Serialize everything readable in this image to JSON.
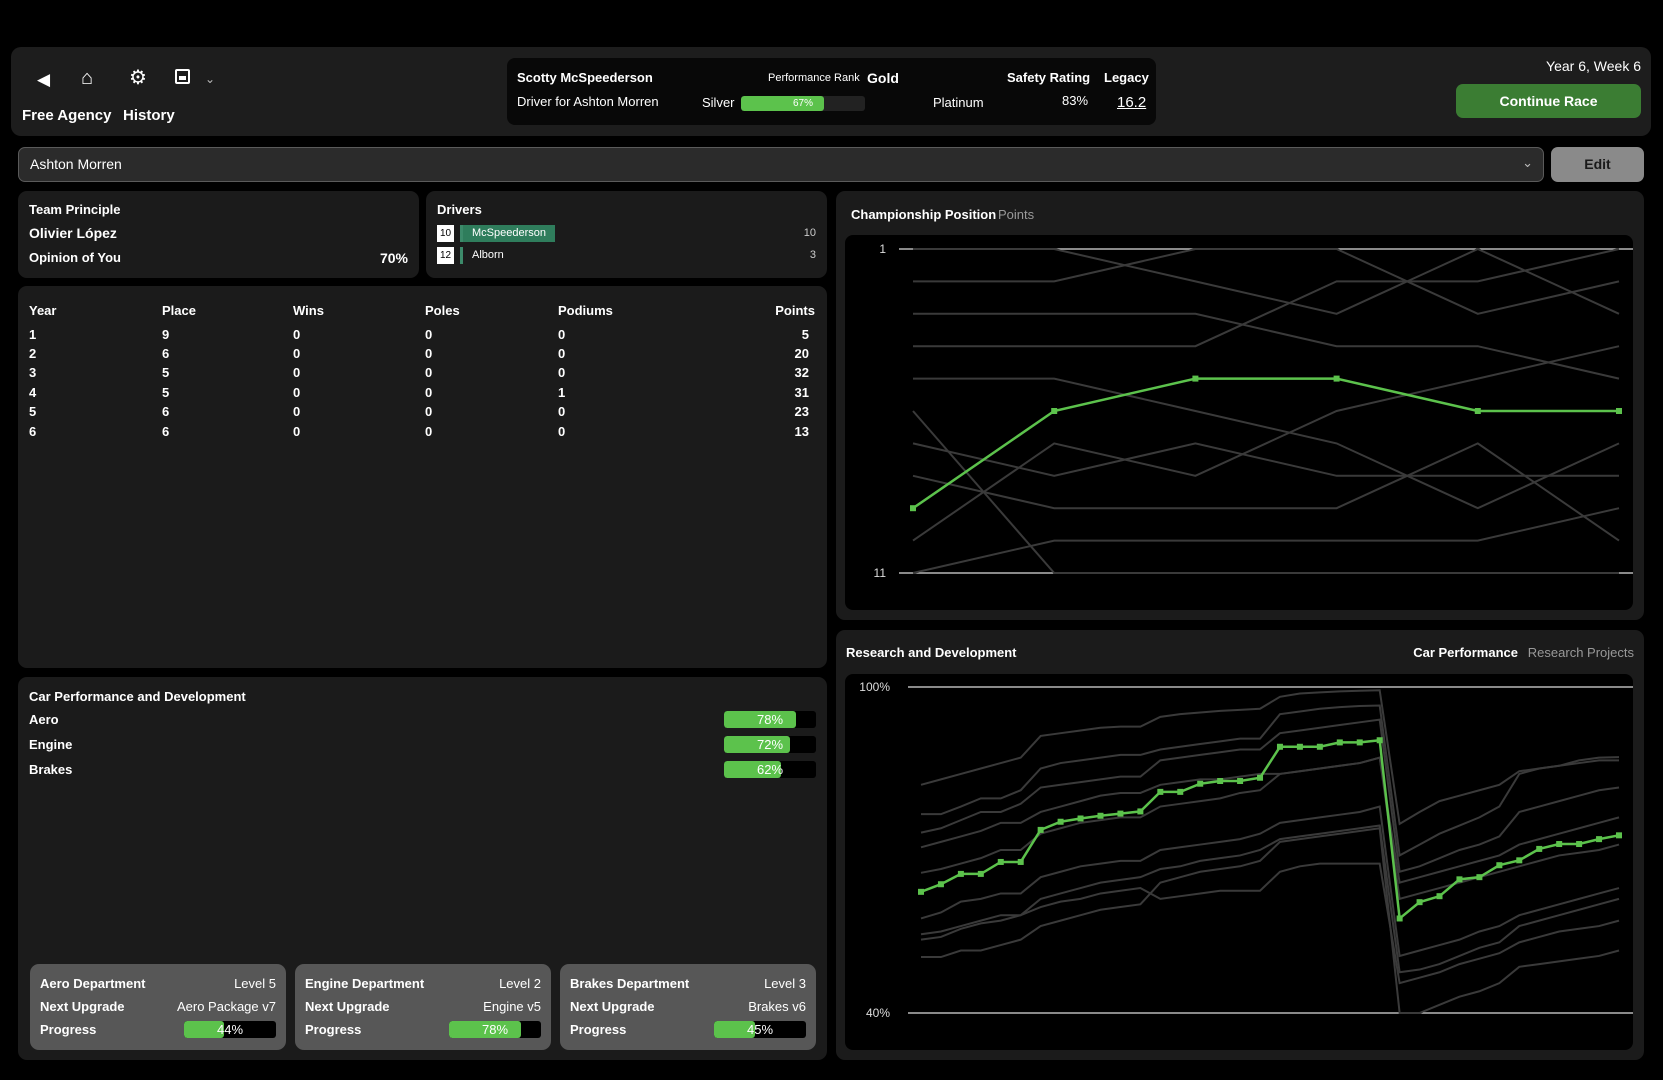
{
  "header": {
    "nav_icons": [
      "back-icon",
      "home-icon",
      "gear-icon",
      "save-icon",
      "chevron-down-icon"
    ],
    "links": [
      "Free Agency",
      "History"
    ],
    "driver_name": "Scotty McSpeederson",
    "driver_role": "Driver for Ashton Morren",
    "performance_rank_label": "Performance Rank",
    "performance_rank": "Gold",
    "rank_prev": "Silver",
    "rank_next": "Platinum",
    "rank_progress": 67,
    "rank_progress_text": "67%",
    "safety_label": "Safety Rating",
    "safety_value": "83%",
    "legacy_label": "Legacy",
    "legacy_value": "16.2",
    "date": "Year 6, Week 6",
    "continue_label": "Continue Race"
  },
  "team_select": {
    "value": "Ashton Morren",
    "edit_label": "Edit"
  },
  "team_principle": {
    "title": "Team Principle",
    "name": "Olivier López",
    "opinion_label": "Opinion of You",
    "opinion_value": "70%"
  },
  "drivers": {
    "title": "Drivers",
    "list": [
      {
        "number": "10",
        "name": "McSpeederson",
        "points": "10",
        "highlight": true
      },
      {
        "number": "12",
        "name": "Alborn",
        "points": "3",
        "highlight": false
      }
    ]
  },
  "history_table": {
    "headers": [
      "Year",
      "Place",
      "Wins",
      "Poles",
      "Podiums",
      "Points"
    ],
    "rows": [
      [
        "1",
        "9",
        "0",
        "0",
        "0",
        "5"
      ],
      [
        "2",
        "6",
        "0",
        "0",
        "0",
        "20"
      ],
      [
        "3",
        "5",
        "0",
        "0",
        "0",
        "32"
      ],
      [
        "4",
        "5",
        "0",
        "0",
        "1",
        "31"
      ],
      [
        "5",
        "6",
        "0",
        "0",
        "0",
        "23"
      ],
      [
        "6",
        "6",
        "0",
        "0",
        "0",
        "13"
      ]
    ]
  },
  "car_performance": {
    "title": "Car Performance and Development",
    "stats": [
      {
        "label": "Aero",
        "value": 78,
        "text": "78%"
      },
      {
        "label": "Engine",
        "value": 72,
        "text": "72%"
      },
      {
        "label": "Brakes",
        "value": 62,
        "text": "62%"
      }
    ],
    "departments": [
      {
        "name": "Aero Department",
        "level": "Level 5",
        "upgrade_label": "Next Upgrade",
        "upgrade": "Aero Package v7",
        "progress_label": "Progress",
        "progress": 44,
        "progress_text": "44%"
      },
      {
        "name": "Engine Department",
        "level": "Level 2",
        "upgrade_label": "Next Upgrade",
        "upgrade": "Engine v5",
        "progress_label": "Progress",
        "progress": 78,
        "progress_text": "78%"
      },
      {
        "name": "Brakes Department",
        "level": "Level 3",
        "upgrade_label": "Next Upgrade",
        "upgrade": "Brakes v6",
        "progress_label": "Progress",
        "progress": 45,
        "progress_text": "45%"
      }
    ]
  },
  "colors": {
    "accent": "#5cc24c",
    "button_green": "#3b7d33",
    "other_series": "#3a3a3a"
  },
  "chart_data": [
    {
      "type": "line",
      "tabs": [
        "Championship Position",
        "Points"
      ],
      "active_tab": "Championship Position",
      "x": [
        1,
        2,
        3,
        4,
        5,
        6
      ],
      "ylim": [
        1,
        11
      ],
      "y_inverted": true,
      "tick_labels": [
        "1",
        "11"
      ],
      "grid": false,
      "highlight_series": [
        9,
        6,
        5,
        5,
        6,
        6
      ],
      "other_series": [
        [
          2,
          2,
          1,
          1,
          3,
          2
        ],
        [
          1,
          1,
          2,
          3,
          1,
          3
        ],
        [
          3,
          3,
          3,
          4,
          4,
          5
        ],
        [
          4,
          4,
          4,
          2,
          2,
          1
        ],
        [
          5,
          5,
          6,
          7,
          9,
          7
        ],
        [
          6,
          11,
          11,
          11,
          11,
          11
        ],
        [
          7,
          8,
          7,
          8,
          8,
          8
        ],
        [
          8,
          9,
          9,
          9,
          7,
          10
        ],
        [
          10,
          7,
          8,
          6,
          5,
          4
        ],
        [
          11,
          10,
          10,
          10,
          10,
          9
        ]
      ]
    },
    {
      "type": "line",
      "title": "Research and Development",
      "tabs": [
        "Car Performance",
        "Research Projects"
      ],
      "active_tab": "Car Performance",
      "ylim": [
        40,
        100
      ],
      "tick_labels": [
        "100%",
        "40%"
      ],
      "grid": false,
      "highlight_series": [
        62.3,
        63.7,
        65.6,
        65.6,
        67.8,
        67.8,
        73.7,
        75.2,
        75.8,
        76.3,
        76.7,
        77.1,
        80.7,
        80.7,
        82.2,
        82.7,
        82.7,
        83.3,
        89.0,
        89.0,
        89.0,
        89.8,
        89.8,
        90.2,
        57.4,
        60.4,
        61.5,
        64.6,
        65.0,
        67.2,
        68.1,
        70.2,
        71.1,
        71.1,
        72.0,
        72.7
      ],
      "other_series": [
        [
          82,
          83,
          84,
          85,
          86,
          87,
          91,
          91.5,
          92,
          92.5,
          92.7,
          92.7,
          94.5,
          95,
          95.3,
          95.6,
          95.8,
          96,
          98.2,
          98.8,
          99,
          99.2,
          99.3,
          99.4,
          74.8,
          77,
          79,
          80,
          81,
          82,
          84.5,
          85,
          85.5,
          86.5,
          87,
          87.1
        ],
        [
          76.6,
          76.6,
          78,
          79.5,
          79.5,
          81,
          85,
          86,
          86.5,
          87,
          87.5,
          87.5,
          88.5,
          89,
          89.5,
          90,
          90.5,
          90.5,
          95,
          95.5,
          96,
          96.3,
          96.5,
          96.6,
          69,
          71,
          73,
          74.5,
          76,
          78,
          84,
          85,
          85.5,
          86,
          86.5,
          86.5
        ],
        [
          73.2,
          74,
          75.5,
          77,
          77,
          78.5,
          81.5,
          82,
          82.5,
          83,
          83.5,
          83.5,
          86.5,
          87,
          87.5,
          88,
          88.5,
          88.5,
          91.5,
          92,
          92.5,
          93,
          93.5,
          94,
          66,
          67,
          68.5,
          70,
          71,
          72.5,
          77,
          78,
          79,
          80,
          81,
          81.5
        ],
        [
          70.5,
          71.5,
          72.5,
          73.5,
          75,
          75,
          77,
          78,
          79,
          80,
          80.5,
          80.5,
          82,
          82.5,
          83,
          83,
          83.5,
          84,
          84,
          84.5,
          85,
          85.5,
          86,
          87,
          64,
          65,
          66,
          67,
          68,
          69,
          71,
          72,
          73,
          74,
          75,
          76
        ],
        [
          65.8,
          66.5,
          67.5,
          68.5,
          70,
          70,
          73,
          74,
          75,
          75.5,
          76,
          76,
          78,
          78.5,
          79,
          79.5,
          80.5,
          81,
          84,
          84.5,
          85,
          85.5,
          86,
          87,
          61,
          62,
          63,
          64,
          65,
          66,
          67,
          68,
          69,
          69.5,
          70,
          71
        ],
        [
          57.4,
          58.5,
          60.5,
          61,
          62,
          62,
          65,
          66,
          67,
          67.5,
          68,
          68,
          70,
          70.5,
          71,
          71.5,
          72,
          73,
          75,
          75.5,
          76,
          76.5,
          77,
          78,
          50.5,
          51.5,
          52.5,
          53.5,
          55,
          56,
          58,
          59,
          60,
          61,
          62,
          63
        ],
        [
          54.5,
          55,
          56,
          57,
          58,
          58,
          61,
          62,
          63,
          64,
          64.5,
          65,
          66.5,
          67,
          68,
          68.5,
          69,
          70,
          72,
          72.5,
          73,
          73.5,
          74,
          74.5,
          47.5,
          48,
          49,
          50.5,
          52,
          53,
          56,
          57,
          58,
          59,
          60,
          61
        ],
        [
          53.5,
          54,
          55.5,
          56.5,
          57,
          58,
          59.5,
          60.5,
          61,
          62,
          62.5,
          63,
          61,
          61.5,
          62,
          62.5,
          62.5,
          62.5,
          66,
          67,
          67.5,
          67.5,
          67.5,
          67.5,
          45.5,
          46.5,
          47.5,
          49,
          50,
          51,
          53,
          54,
          55,
          55.5,
          56,
          57
        ],
        [
          50.3,
          50.3,
          51.5,
          51.5,
          52.5,
          53.5,
          56,
          57,
          58,
          59,
          59.5,
          60,
          64,
          65,
          66,
          66.5,
          67,
          68,
          71.5,
          72,
          72.5,
          73,
          73.5,
          74,
          40,
          40,
          41.5,
          43,
          44,
          45.5,
          48.5,
          49,
          49.5,
          50,
          50.5,
          51.5
        ]
      ]
    }
  ]
}
